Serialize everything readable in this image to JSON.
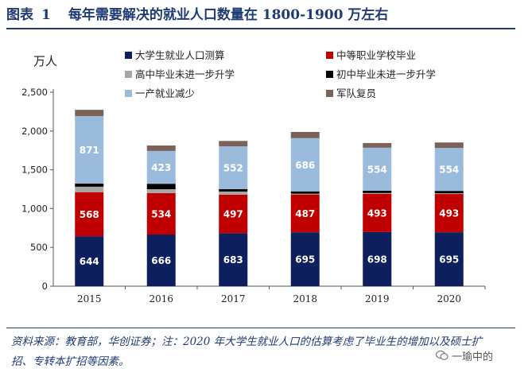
{
  "title": {
    "label": "图表",
    "number": "1",
    "text": "每年需要解决的就业人口数量在 1800-1900 万左右"
  },
  "chart_data": {
    "type": "bar",
    "stacked": true,
    "unit_label": "万人",
    "categories": [
      "2015",
      "2016",
      "2017",
      "2018",
      "2019",
      "2020"
    ],
    "ylim": [
      0,
      2500
    ],
    "yticks": [
      0,
      500,
      1000,
      1500,
      2000,
      2500
    ],
    "ytick_labels": [
      "0",
      "500",
      "1,000",
      "1,500",
      "2,000",
      "2,500"
    ],
    "legend_position": "top",
    "series": [
      {
        "name": "大学生就业人口测算",
        "color": "#0d1f5c",
        "values": [
          644,
          666,
          683,
          695,
          698,
          695
        ],
        "labels": [
          "644",
          "666",
          "683",
          "695",
          "698",
          "695"
        ]
      },
      {
        "name": "中等职业学校毕业",
        "color": "#c00000",
        "values": [
          568,
          534,
          497,
          487,
          493,
          493
        ],
        "labels": [
          "568",
          "534",
          "497",
          "487",
          "493",
          "493"
        ]
      },
      {
        "name": "高中毕业未进一步升学",
        "color": "#a6a6a6",
        "values": [
          70,
          50,
          40,
          10,
          10,
          10
        ],
        "labels": []
      },
      {
        "name": "初中毕业未进一步升学",
        "color": "#000000",
        "values": [
          40,
          70,
          30,
          30,
          30,
          30
        ],
        "labels": []
      },
      {
        "name": "一产就业减少",
        "color": "#9bbbdc",
        "values": [
          871,
          423,
          552,
          686,
          554,
          554
        ],
        "labels": [
          "871",
          "423",
          "552",
          "686",
          "554",
          "554"
        ]
      },
      {
        "name": "军队复员",
        "color": "#7a6258",
        "values": [
          80,
          70,
          70,
          80,
          60,
          70
        ],
        "labels": []
      }
    ]
  },
  "note": {
    "text": "资料来源：教育部，华创证券；注：2020 年大学生就业人口的估算考虑了毕业生的增加以及硕士扩招、专转本扩招等因素。"
  },
  "watermark": {
    "text": "一瑜中的"
  }
}
